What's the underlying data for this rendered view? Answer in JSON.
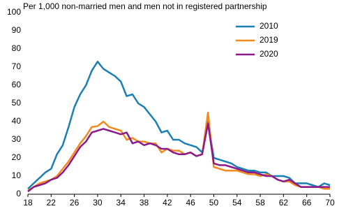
{
  "chart_data": {
    "type": "line",
    "title": "Per 1,000 non-married men and men not in registered partnership",
    "x": [
      18,
      19,
      20,
      21,
      22,
      23,
      24,
      25,
      26,
      27,
      28,
      29,
      30,
      31,
      32,
      33,
      34,
      35,
      36,
      37,
      38,
      39,
      40,
      41,
      42,
      43,
      44,
      45,
      46,
      47,
      48,
      49,
      50,
      51,
      52,
      53,
      54,
      55,
      56,
      57,
      58,
      59,
      60,
      61,
      62,
      63,
      64,
      65,
      66,
      67,
      68,
      69,
      70
    ],
    "series": [
      {
        "name": "2010",
        "color": "#1a7fb5",
        "values": [
          3,
          6,
          9,
          12,
          14,
          22,
          27,
          37,
          48,
          55,
          60,
          68,
          73,
          69,
          67,
          65,
          62,
          54,
          55,
          50,
          48,
          44,
          40,
          34,
          35,
          30,
          30,
          28,
          27,
          26,
          23,
          40,
          20,
          19,
          18,
          17,
          15,
          14,
          13,
          13,
          12,
          12,
          10,
          10,
          10,
          9,
          6,
          6,
          6,
          5,
          4,
          6,
          5
        ]
      },
      {
        "name": "2019",
        "color": "#f28a1e",
        "values": [
          2,
          4,
          6,
          7,
          8,
          10,
          14,
          18,
          23,
          28,
          32,
          37,
          37.5,
          40,
          37,
          36,
          35,
          30,
          31,
          29,
          29,
          28,
          28,
          23,
          25,
          24,
          24,
          22,
          23,
          21,
          22,
          45,
          15,
          14,
          13,
          13,
          13,
          12,
          11,
          11,
          10,
          11,
          10,
          8,
          7,
          7,
          5,
          4,
          4,
          4,
          4,
          3,
          3
        ]
      },
      {
        "name": "2020",
        "color": "#8b1a8b",
        "values": [
          1.5,
          4,
          5,
          6,
          8,
          9,
          12,
          16,
          21,
          26,
          29,
          34,
          35,
          36,
          35,
          34,
          33,
          34,
          28,
          29,
          27,
          28,
          27,
          25,
          25,
          23,
          22,
          22,
          23,
          21,
          22,
          39,
          17,
          16,
          16,
          15,
          14,
          13,
          12,
          12,
          11,
          10,
          10,
          8,
          7,
          8,
          6,
          4,
          4,
          4,
          4,
          4,
          4
        ]
      }
    ],
    "xlim": [
      18,
      70
    ],
    "xticks": [
      18,
      22,
      26,
      30,
      34,
      38,
      42,
      46,
      50,
      54,
      58,
      62,
      66,
      70
    ],
    "ylim": [
      0,
      100
    ],
    "yticks": [
      0,
      10,
      20,
      30,
      40,
      50,
      60,
      70,
      80,
      90,
      100
    ],
    "grid": false,
    "legend": "upper-right"
  }
}
